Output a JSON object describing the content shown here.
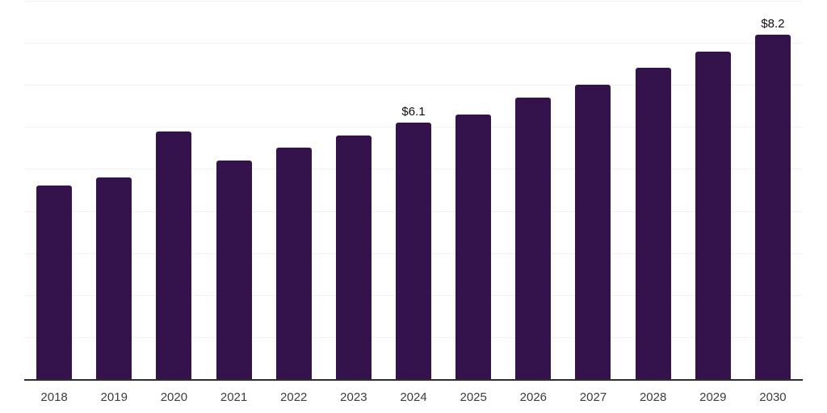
{
  "page": {
    "background": "#ffffff"
  },
  "chart_data": {
    "type": "bar",
    "title": "",
    "xlabel": "",
    "ylabel": "",
    "categories": [
      "2018",
      "2019",
      "2020",
      "2021",
      "2022",
      "2023",
      "2024",
      "2025",
      "2026",
      "2027",
      "2028",
      "2029",
      "2030"
    ],
    "values": [
      4.6,
      4.8,
      5.9,
      5.2,
      5.5,
      5.8,
      6.1,
      6.3,
      6.7,
      7.0,
      7.4,
      7.8,
      8.2
    ],
    "value_labels": [
      "",
      "",
      "",
      "",
      "",
      "",
      "$6.1",
      "",
      "",
      "",
      "",
      "",
      "$8.2"
    ],
    "ylim": [
      0,
      9
    ],
    "grid_step": 1,
    "grid": true,
    "legend": false,
    "bar_color": "#34124b",
    "axis_color": "#2e2e2e",
    "gridline_color": "#f2f2f3",
    "tick_label_color": "#3c3c3c",
    "value_label_color": "#0e0e0e"
  }
}
